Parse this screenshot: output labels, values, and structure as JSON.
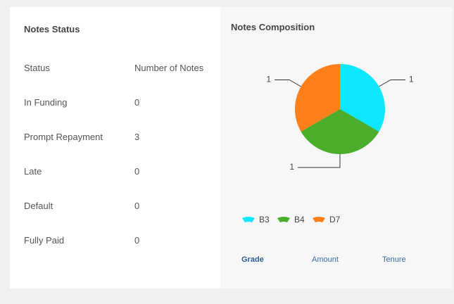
{
  "notes_status": {
    "title": "Notes Status",
    "header": [
      "Status",
      "Number of Notes"
    ],
    "rows": [
      [
        "In Funding",
        0
      ],
      [
        "Prompt Repayment",
        3
      ],
      [
        "Late",
        0
      ],
      [
        "Default",
        0
      ],
      [
        "Fully Paid",
        0
      ]
    ]
  },
  "chart_data": {
    "type": "pie",
    "title": "Notes Composition",
    "categories": [
      "B3",
      "B4",
      "D7"
    ],
    "values": [
      1,
      1,
      1
    ],
    "colors": [
      "#0ee8ff",
      "#4aad2b",
      "#ff7f1a"
    ]
  },
  "tabs": [
    "Grade",
    "Amount",
    "Tenure"
  ]
}
